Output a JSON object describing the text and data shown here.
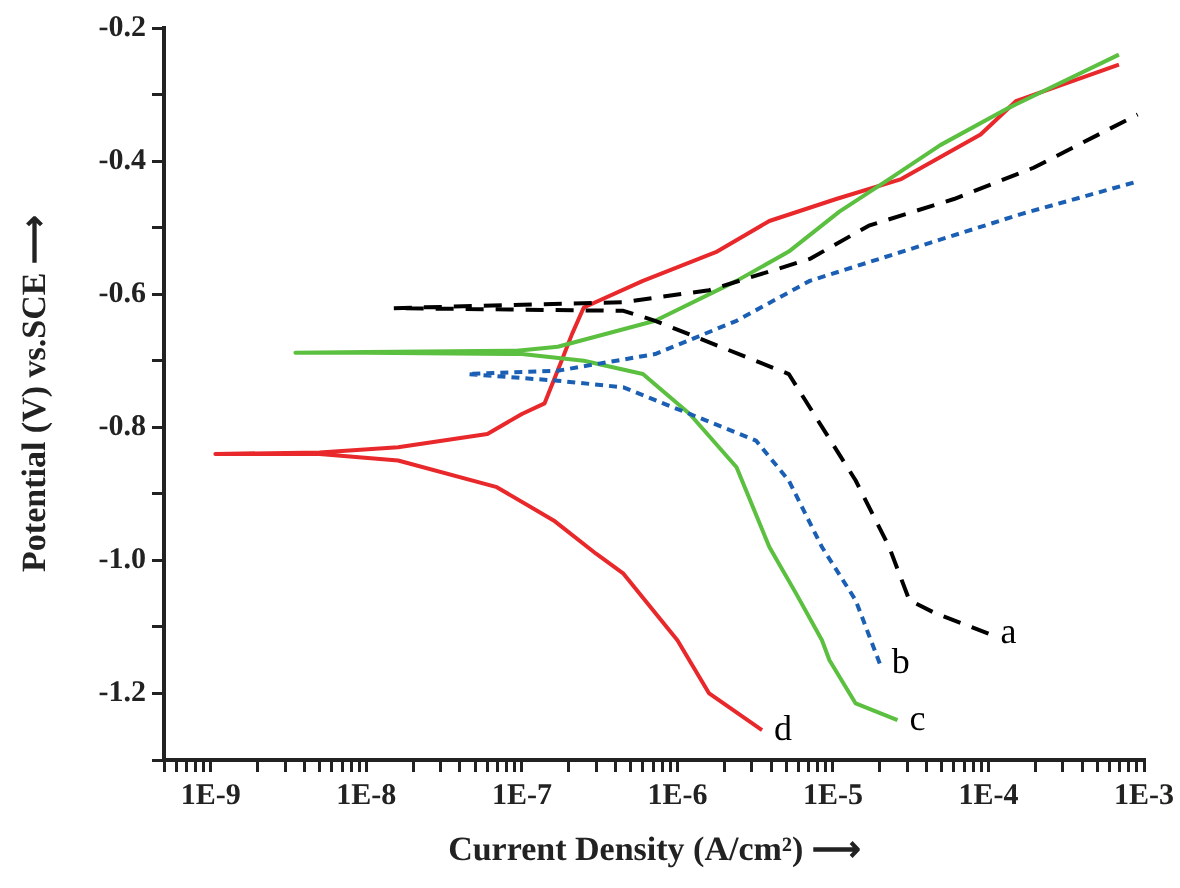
{
  "chart_data": {
    "type": "line",
    "xlabel": "Current Density (A/cm²) ⟶",
    "ylabel": "Potential (V) vs.SCE ⟶",
    "log": "x",
    "grid": false,
    "legend": false,
    "marker": "none",
    "xlim": [
      5e-10,
      0.001
    ],
    "xticks": [
      {
        "value": 5e-10,
        "label": null
      },
      {
        "value": 6e-10,
        "label": null
      },
      {
        "value": 7e-10,
        "label": null
      },
      {
        "value": 8e-10,
        "label": null
      },
      {
        "value": 9e-10,
        "label": null
      },
      {
        "value": 1e-09,
        "label": "1E-9"
      },
      {
        "value": 2e-09,
        "label": null
      },
      {
        "value": 3e-09,
        "label": null
      },
      {
        "value": 4e-09,
        "label": null
      },
      {
        "value": 5e-09,
        "label": null
      },
      {
        "value": 6e-09,
        "label": null
      },
      {
        "value": 7e-09,
        "label": null
      },
      {
        "value": 8e-09,
        "label": null
      },
      {
        "value": 9e-09,
        "label": null
      },
      {
        "value": 1e-08,
        "label": "1E-8"
      },
      {
        "value": 2e-08,
        "label": null
      },
      {
        "value": 3e-08,
        "label": null
      },
      {
        "value": 4e-08,
        "label": null
      },
      {
        "value": 5e-08,
        "label": null
      },
      {
        "value": 6e-08,
        "label": null
      },
      {
        "value": 7e-08,
        "label": null
      },
      {
        "value": 8e-08,
        "label": null
      },
      {
        "value": 9e-08,
        "label": null
      },
      {
        "value": 1e-07,
        "label": "1E-7"
      },
      {
        "value": 2e-07,
        "label": null
      },
      {
        "value": 3e-07,
        "label": null
      },
      {
        "value": 4e-07,
        "label": null
      },
      {
        "value": 5e-07,
        "label": null
      },
      {
        "value": 6e-07,
        "label": null
      },
      {
        "value": 7e-07,
        "label": null
      },
      {
        "value": 8e-07,
        "label": null
      },
      {
        "value": 9e-07,
        "label": null
      },
      {
        "value": 1e-06,
        "label": "1E-6"
      },
      {
        "value": 2e-06,
        "label": null
      },
      {
        "value": 3e-06,
        "label": null
      },
      {
        "value": 4e-06,
        "label": null
      },
      {
        "value": 5e-06,
        "label": null
      },
      {
        "value": 6e-06,
        "label": null
      },
      {
        "value": 7e-06,
        "label": null
      },
      {
        "value": 8e-06,
        "label": null
      },
      {
        "value": 9e-06,
        "label": null
      },
      {
        "value": 1e-05,
        "label": "1E-5"
      },
      {
        "value": 2e-05,
        "label": null
      },
      {
        "value": 3e-05,
        "label": null
      },
      {
        "value": 4e-05,
        "label": null
      },
      {
        "value": 5e-05,
        "label": null
      },
      {
        "value": 6e-05,
        "label": null
      },
      {
        "value": 7e-05,
        "label": null
      },
      {
        "value": 8e-05,
        "label": null
      },
      {
        "value": 9e-05,
        "label": null
      },
      {
        "value": 0.0001,
        "label": "1E-4"
      },
      {
        "value": 0.0002,
        "label": null
      },
      {
        "value": 0.0003,
        "label": null
      },
      {
        "value": 0.0004,
        "label": null
      },
      {
        "value": 0.0005,
        "label": null
      },
      {
        "value": 0.0006,
        "label": null
      },
      {
        "value": 0.0007,
        "label": null
      },
      {
        "value": 0.0008,
        "label": null
      },
      {
        "value": 0.0009,
        "label": null
      },
      {
        "value": 0.001,
        "label": "1E-3"
      }
    ],
    "ylim": [
      -1.3,
      -0.2
    ],
    "yticks": [
      {
        "value": -1.3,
        "label": null
      },
      {
        "value": -1.2,
        "label": "-1.2"
      },
      {
        "value": -1.1,
        "label": null
      },
      {
        "value": -1.0,
        "label": "-1.0"
      },
      {
        "value": -0.9,
        "label": null
      },
      {
        "value": -0.8,
        "label": "-0.8"
      },
      {
        "value": -0.7,
        "label": null
      },
      {
        "value": -0.6,
        "label": "-0.6"
      },
      {
        "value": -0.5,
        "label": null
      },
      {
        "value": -0.4,
        "label": "-0.4"
      },
      {
        "value": -0.3,
        "label": null
      },
      {
        "value": -0.2,
        "label": "-0.2"
      }
    ],
    "series": [
      {
        "name": "a",
        "color": "#000000",
        "line_style": "dashed",
        "x": [
          0.0001,
          4.6e-05,
          3.1e-05,
          2.3e-05,
          1.4e-05,
          5.2e-06,
          7.2e-07,
          4.5e-07,
          1.5e-08,
          4.5e-07,
          1.6e-06,
          7.1e-06,
          1.7e-05,
          6e-05,
          0.000195,
          0.00091
        ],
        "values": [
          -1.11,
          -1.08,
          -1.06,
          -0.98,
          -0.88,
          -0.72,
          -0.64,
          -0.625,
          -0.621,
          -0.612,
          -0.594,
          -0.547,
          -0.497,
          -0.457,
          -0.41,
          -0.33
        ]
      },
      {
        "name": "b",
        "color": "#1a5fb4",
        "line_style": "dotted",
        "x": [
          2e-05,
          1.4e-05,
          8.5e-06,
          5.2e-06,
          3.2e-06,
          1.2e-06,
          4.5e-07,
          1.7e-07,
          4.5e-08,
          1.7e-07,
          7.2e-07,
          2.4e-06,
          7.1e-06,
          3.7e-05,
          0.00016,
          0.00093
        ],
        "values": [
          -1.155,
          -1.06,
          -0.98,
          -0.88,
          -0.82,
          -0.78,
          -0.74,
          -0.73,
          -0.72,
          -0.715,
          -0.69,
          -0.64,
          -0.58,
          -0.527,
          -0.48,
          -0.43
        ]
      },
      {
        "name": "c",
        "color": "#5bbf3f",
        "line_style": "solid",
        "x": [
          2.6e-05,
          1.4e-05,
          9.5e-06,
          8.5e-06,
          5.8e-06,
          3.9e-06,
          2.4e-06,
          1.2e-06,
          6e-07,
          2.5e-07,
          1e-07,
          1e-08,
          3.5e-09,
          1e-08,
          9.3e-08,
          1.7e-07,
          7.2e-07,
          2.4e-06,
          5.2e-06,
          1.1e-05,
          2.3e-05,
          4.9e-05,
          0.000135,
          0.00069
        ],
        "values": [
          -1.24,
          -1.215,
          -1.15,
          -1.12,
          -1.05,
          -0.98,
          -0.86,
          -0.78,
          -0.72,
          -0.7,
          -0.69,
          -0.688,
          -0.688,
          -0.687,
          -0.685,
          -0.679,
          -0.64,
          -0.58,
          -0.536,
          -0.476,
          -0.427,
          -0.376,
          -0.32,
          -0.24
        ]
      },
      {
        "name": "d",
        "color": "#e8282b",
        "line_style": "solid",
        "x": [
          3.5e-06,
          1.6e-06,
          1e-06,
          4.5e-07,
          3e-07,
          1.6e-07,
          6.9e-08,
          1.6e-08,
          5e-09,
          1.07e-09,
          5e-09,
          1.6e-08,
          6e-08,
          1e-07,
          1.4e-07,
          1.8e-07,
          2.1e-07,
          2.5e-07,
          6e-07,
          1.8e-06,
          3.9e-06,
          1.05e-05,
          2.75e-05,
          8.9e-05,
          0.00015,
          0.00069
        ],
        "values": [
          -1.255,
          -1.2,
          -1.12,
          -1.02,
          -0.99,
          -0.94,
          -0.89,
          -0.85,
          -0.84,
          -0.84,
          -0.838,
          -0.83,
          -0.81,
          -0.78,
          -0.764,
          -0.7,
          -0.66,
          -0.62,
          -0.58,
          -0.536,
          -0.49,
          -0.457,
          -0.427,
          -0.36,
          -0.31,
          -0.255
        ]
      }
    ]
  }
}
